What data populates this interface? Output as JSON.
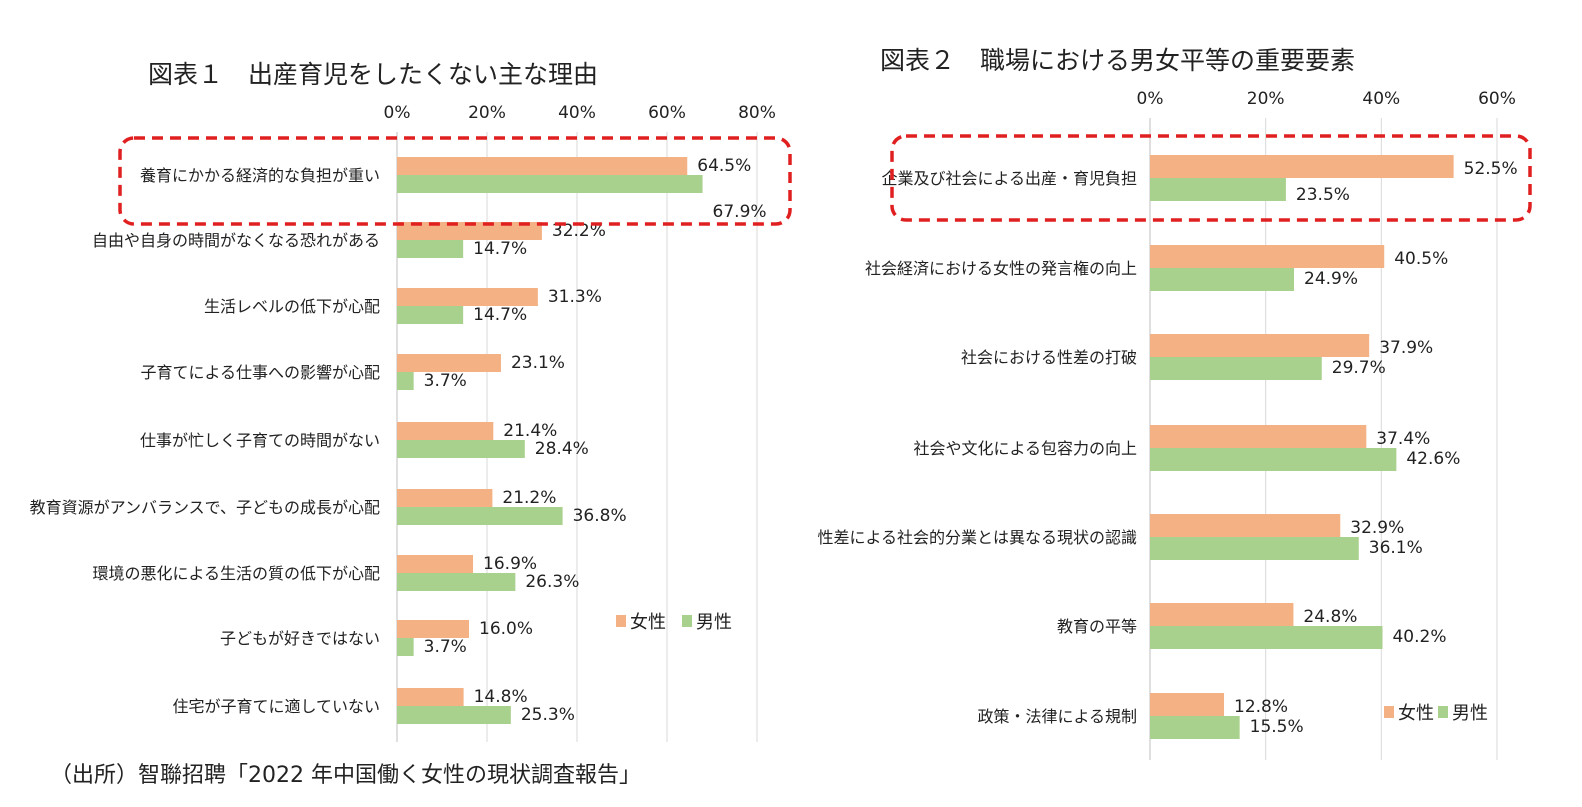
{
  "chart_data": [
    {
      "type": "bar",
      "orientation": "horizontal",
      "title": "図表１　出産育児をしたくない主な理由",
      "categories": [
        "養育にかかる経済的な負担が重い",
        "自由や自身の時間がなくなる恐れがある",
        "生活レベルの低下が心配",
        "子育てによる仕事への影響が心配",
        "仕事が忙しく子育ての時間がない",
        "教育資源がアンバランスで、子どもの成長が心配",
        "環境の悪化による生活の質の低下が心配",
        "子どもが好きではない",
        "住宅が子育てに適していない"
      ],
      "series": [
        {
          "name": "女性",
          "color": "#f4b183",
          "values": [
            64.5,
            32.2,
            31.3,
            23.1,
            21.4,
            21.2,
            16.9,
            16.0,
            14.8
          ]
        },
        {
          "name": "男性",
          "color": "#a9d18e",
          "values": [
            67.9,
            14.7,
            14.7,
            3.7,
            28.4,
            36.8,
            26.3,
            3.7,
            25.3
          ]
        }
      ],
      "xlim": [
        0,
        80
      ],
      "xticks": [
        "0%",
        "20%",
        "40%",
        "60%",
        "80%"
      ],
      "value_labels": [
        [
          "64.5%",
          "32.2%",
          "31.3%",
          "23.1%",
          "21.4%",
          "21.2%",
          "16.9%",
          "16.0%",
          "14.8%"
        ],
        [
          "67.9%",
          "14.7%",
          "14.7%",
          "3.7%",
          "28.4%",
          "36.8%",
          "26.3%",
          "3.7%",
          "25.3%"
        ]
      ],
      "grid": true,
      "axis_position": "top",
      "legend": "right",
      "highlight_index": 0,
      "highlight_color": "#e02020"
    },
    {
      "type": "bar",
      "orientation": "horizontal",
      "title": "図表２　職場における男女平等の重要要素",
      "categories": [
        "企業及び社会による出産・育児負担",
        "社会経済における女性の発言権の向上",
        "社会における性差の打破",
        "社会や文化による包容力の向上",
        "性差による社会的分業とは異なる現状の認識",
        "教育の平等",
        "政策・法律による規制"
      ],
      "series": [
        {
          "name": "女性",
          "color": "#f4b183",
          "values": [
            52.5,
            40.5,
            37.9,
            37.4,
            32.9,
            24.8,
            12.8
          ]
        },
        {
          "name": "男性",
          "color": "#a9d18e",
          "values": [
            23.5,
            24.9,
            29.7,
            42.6,
            36.1,
            40.2,
            15.5
          ]
        }
      ],
      "xlim": [
        0,
        60
      ],
      "xticks": [
        "0%",
        "20%",
        "40%",
        "60%"
      ],
      "value_labels": [
        [
          "52.5%",
          "40.5%",
          "37.9%",
          "37.4%",
          "32.9%",
          "24.8%",
          "12.8%"
        ],
        [
          "23.5%",
          "24.9%",
          "29.7%",
          "42.6%",
          "36.1%",
          "40.2%",
          "15.5%"
        ]
      ],
      "grid": true,
      "axis_position": "top",
      "legend": "bottom-right",
      "highlight_index": 0,
      "highlight_color": "#e02020"
    }
  ],
  "source_note": "（出所）智聯招聘「2022 年中国働く女性の現状調査報告」"
}
